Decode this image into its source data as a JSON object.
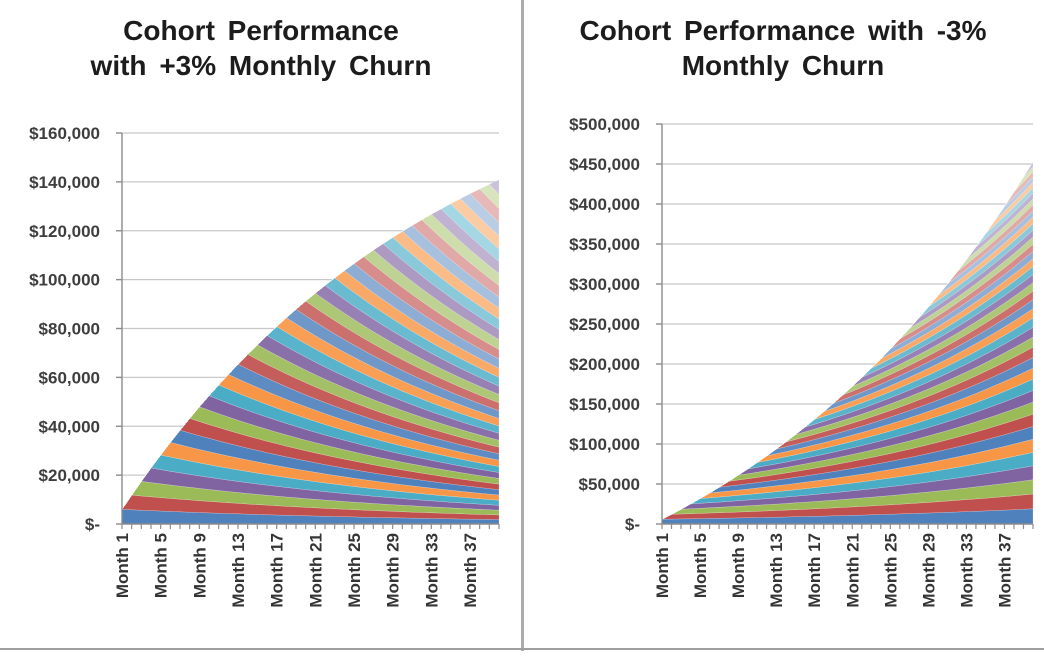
{
  "page": {
    "background": "#ffffff"
  },
  "styles": {
    "palette": [
      "#4F81BD",
      "#C0504D",
      "#9BBB59",
      "#8064A2",
      "#4BACC6",
      "#F79646"
    ],
    "tint_steps": [
      0,
      0,
      0.08,
      0.18,
      0.35,
      0.5,
      0.6
    ],
    "gridline_color": "#c8c8c8",
    "axis_color": "#8c8c8c",
    "tick_color": "#8c8c8c",
    "tick_label_color": "#3e3e3e",
    "title_color": "#1c1c1c",
    "divider_color": "#ababab"
  },
  "chart_data": [
    {
      "type": "area",
      "stacking": "stacked",
      "title": "Cohort Performance with +3% Monthly Churn",
      "title_line1": "Cohort Performance",
      "title_line2": "with +3% Monthly Churn",
      "monthly_churn_pct": 3,
      "months": 40,
      "cohorts": 40,
      "cohort_start_revenue": 6000,
      "monthly_retention_factor": 0.97,
      "legend": "none",
      "grid": "horizontal",
      "y_axis": {
        "min": 0,
        "max": 160000,
        "step": 20000,
        "tick_labels": [
          "$160,000",
          "$140,000",
          "$120,000",
          "$100,000",
          "$80,000",
          "$60,000",
          "$40,000",
          "$20,000",
          "$-"
        ]
      },
      "x_axis": {
        "category_prefix": "Month",
        "label_interval": 4,
        "labeled_ticks": [
          "Month 1",
          "Month 5",
          "Month 9",
          "Month 13",
          "Month 17",
          "Month 21",
          "Month 25",
          "Month 29",
          "Month 33",
          "Month 37"
        ]
      },
      "stacked_totals_by_month": [
        6000,
        11820,
        17465,
        22941,
        28253,
        33406,
        38403,
        43251,
        47954,
        52515,
        56940,
        61232,
        65395,
        69433,
        73350,
        77149,
        80835,
        84410,
        87877,
        91241,
        94504,
        97669,
        100739,
        103717,
        106605,
        109407,
        112125,
        114761,
        117318,
        119799,
        122205,
        124538,
        126802,
        128998,
        131128,
        133194,
        135199,
        137143,
        139028,
        140858
      ]
    },
    {
      "type": "area",
      "stacking": "stacked",
      "title": "Cohort Performance with -3% Monthly Churn",
      "title_line1": "Cohort Performance with -3%",
      "title_line2": "Monthly Churn",
      "monthly_churn_pct": -3,
      "months": 40,
      "cohorts": 40,
      "cohort_start_revenue": 6000,
      "monthly_retention_factor": 1.03,
      "legend": "none",
      "grid": "horizontal",
      "y_axis": {
        "min": 0,
        "max": 500000,
        "step": 50000,
        "tick_labels": [
          "$500,000",
          "$450,000",
          "$400,000",
          "$350,000",
          "$300,000",
          "$250,000",
          "$200,000",
          "$150,000",
          "$100,000",
          "$50,000",
          "$-"
        ]
      },
      "x_axis": {
        "category_prefix": "Month",
        "label_interval": 4,
        "labeled_ticks": [
          "Month 1",
          "Month 5",
          "Month 9",
          "Month 13",
          "Month 17",
          "Month 21",
          "Month 25",
          "Month 29",
          "Month 33",
          "Month 37"
        ]
      },
      "stacked_totals_by_month": [
        6000,
        12180,
        18545,
        25102,
        31855,
        38810,
        45975,
        53354,
        60955,
        68783,
        76847,
        85152,
        93707,
        102518,
        111593,
        120941,
        130570,
        140487,
        150701,
        161222,
        172059,
        183221,
        194717,
        206559,
        218756,
        231318,
        244258,
        257586,
        271313,
        285452,
        300016,
        315017,
        330467,
        346381,
        362772,
        379656,
        397045,
        414957,
        433405,
        452408
      ]
    }
  ]
}
